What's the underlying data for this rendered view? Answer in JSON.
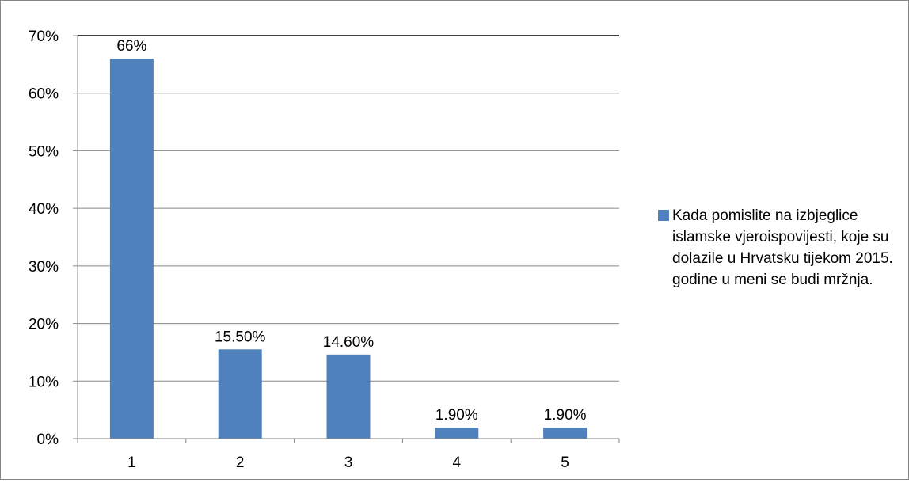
{
  "chart_data": {
    "type": "bar",
    "categories": [
      "1",
      "2",
      "3",
      "4",
      "5"
    ],
    "series": [
      {
        "name": "Kada pomislite na izbjeglice islamske vjeroispovijesti, koje su dolazile u Hrvatsku tijekom 2015. godine u meni se budi mržnja.",
        "values": [
          66,
          15.5,
          14.6,
          1.9,
          1.9
        ],
        "data_labels": [
          "66%",
          "15.50%",
          "14.60%",
          "1.90%",
          "1.90%"
        ],
        "color": "#4F81BD"
      }
    ],
    "ylim": [
      0,
      70
    ],
    "yticks": [
      0,
      10,
      20,
      30,
      40,
      50,
      60,
      70
    ],
    "ytick_labels": [
      "0%",
      "10%",
      "20%",
      "30%",
      "40%",
      "50%",
      "60%",
      "70%"
    ],
    "grid": true,
    "legend": "right"
  }
}
